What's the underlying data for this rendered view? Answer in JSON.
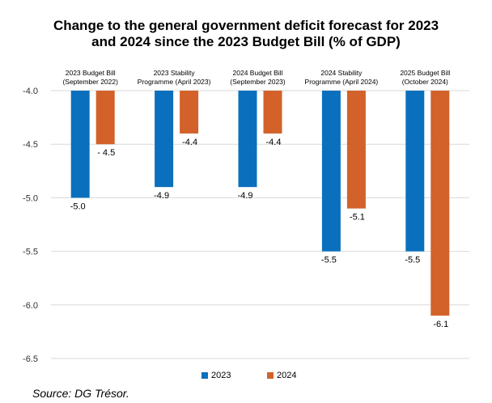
{
  "chart_data": {
    "type": "bar",
    "title": [
      "Change to the general government deficit forecast for 2023",
      "and 2024 since the 2023 Budget Bill (% of GDP)"
    ],
    "categories": [
      [
        "2023 Budget Bill",
        "(September 2022)"
      ],
      [
        "2023 Stability",
        "Programme (April 2023)"
      ],
      [
        "2024 Budget Bill",
        "(September 2023)"
      ],
      [
        "2024 Stability",
        "Programme (April 2024)"
      ],
      [
        "2025 Budget Bill",
        "(October 2024)"
      ]
    ],
    "series": [
      {
        "name": "2023",
        "color": "#0a70bd",
        "values": [
          -5.0,
          -4.9,
          -4.9,
          -5.5,
          -5.5
        ],
        "labels": [
          "-5.0",
          "-4.9",
          "-4.9",
          "-5.5",
          "-5.5"
        ]
      },
      {
        "name": "2024",
        "color": "#d2622a",
        "values": [
          -4.5,
          -4.4,
          -4.4,
          -5.1,
          -6.1
        ],
        "labels": [
          "- 4.5",
          "-4.4",
          "-4.4",
          "-5.1",
          "-6.1"
        ]
      }
    ],
    "yticks": [
      "-4.0",
      "-4.5",
      "-5.0",
      "-5.5",
      "-6.0",
      "-6.5"
    ],
    "ylim": [
      -6.5,
      -4.0
    ],
    "gridlines": true,
    "legend_position": "bottom",
    "source": "Source: DG Trésor."
  }
}
